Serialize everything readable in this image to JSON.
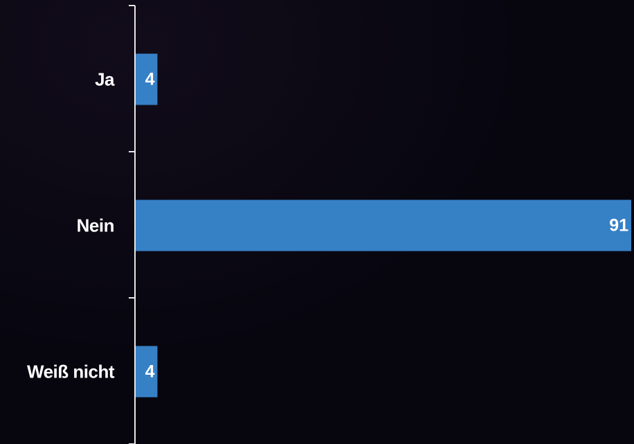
{
  "chart_data": {
    "type": "bar",
    "orientation": "horizontal",
    "categories": [
      "Ja",
      "Nein",
      "Weiß nicht"
    ],
    "values": [
      4,
      91,
      4
    ],
    "xlim": [
      0,
      91
    ],
    "grid": false,
    "bar_color": "#3680c6",
    "axis_color": "#e8e8e8",
    "label_color": "#ffffff",
    "background_color": "#07060f"
  }
}
